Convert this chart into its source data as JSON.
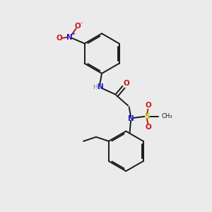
{
  "bg_color": "#ebebeb",
  "bond_color": "#1a1a1a",
  "n_color": "#1414cc",
  "o_color": "#cc1414",
  "s_color": "#b8b800",
  "h_color": "#708090",
  "figsize": [
    3.0,
    3.0
  ],
  "dpi": 100,
  "xlim": [
    0,
    10
  ],
  "ylim": [
    0,
    10
  ]
}
